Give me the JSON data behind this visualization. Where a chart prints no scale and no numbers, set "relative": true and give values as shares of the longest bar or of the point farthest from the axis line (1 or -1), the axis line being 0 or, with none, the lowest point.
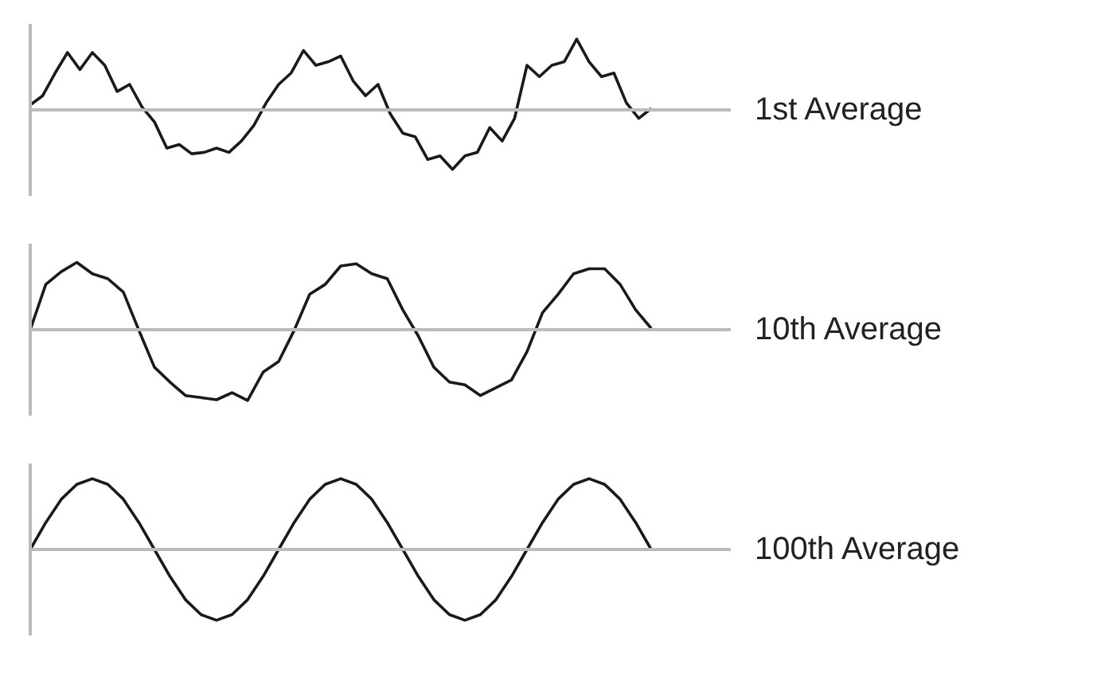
{
  "chart_data": [
    {
      "type": "line",
      "relative": true,
      "categories": [
        null,
        null,
        null,
        null,
        null,
        null,
        null,
        null,
        null,
        null,
        null,
        null,
        null,
        null,
        null,
        null,
        null,
        null,
        null,
        null,
        null,
        null,
        null,
        null,
        null,
        null,
        null,
        null,
        null,
        null,
        null,
        null,
        null,
        null,
        null,
        null,
        null,
        null,
        null,
        null,
        null,
        null,
        null,
        null,
        null,
        null,
        null,
        null,
        null,
        null,
        null
      ],
      "series": [
        {
          "name": "1st Average",
          "color": "#1a1a1a",
          "values": [
            0.07,
            0.2,
            0.52,
            0.81,
            0.57,
            0.81,
            0.63,
            0.26,
            0.36,
            0.04,
            -0.17,
            -0.54,
            -0.49,
            -0.62,
            -0.6,
            -0.54,
            -0.6,
            -0.44,
            -0.22,
            0.1,
            0.36,
            0.52,
            0.84,
            0.63,
            0.68,
            0.76,
            0.41,
            0.2,
            0.36,
            -0.06,
            -0.33,
            -0.38,
            -0.7,
            -0.65,
            -0.84,
            -0.65,
            -0.6,
            -0.25,
            -0.44,
            -0.12,
            0.63,
            0.47,
            0.63,
            0.68,
            1,
            0.68,
            0.47,
            0.52,
            0.1,
            -0.12,
            0.02
          ]
        }
      ]
    },
    {
      "type": "line",
      "relative": true,
      "categories": [
        null,
        null,
        null,
        null,
        null,
        null,
        null,
        null,
        null,
        null,
        null,
        null,
        null,
        null,
        null,
        null,
        null,
        null,
        null,
        null,
        null,
        null,
        null,
        null,
        null,
        null,
        null,
        null,
        null,
        null,
        null,
        null,
        null,
        null,
        null,
        null,
        null,
        null,
        null,
        null,
        null
      ],
      "series": [
        {
          "name": "10th Average",
          "color": "#1a1a1a",
          "values": [
            0,
            0.64,
            0.82,
            0.95,
            0.79,
            0.72,
            0.53,
            -0.01,
            -0.53,
            -0.74,
            -0.93,
            -0.96,
            -0.99,
            -0.89,
            -1,
            -0.6,
            -0.45,
            -0.01,
            0.5,
            0.64,
            0.9,
            0.93,
            0.79,
            0.72,
            0.28,
            -0.09,
            -0.53,
            -0.74,
            -0.78,
            -0.93,
            -0.82,
            -0.71,
            -0.31,
            0.24,
            0.5,
            0.79,
            0.86,
            0.86,
            0.64,
            0.28,
            0.02
          ]
        }
      ]
    },
    {
      "type": "line",
      "relative": true,
      "categories": [
        null,
        null,
        null,
        null,
        null,
        null,
        null,
        null,
        null,
        null,
        null,
        null,
        null,
        null,
        null,
        null,
        null,
        null,
        null,
        null,
        null,
        null,
        null,
        null,
        null,
        null,
        null,
        null,
        null,
        null,
        null,
        null,
        null,
        null,
        null,
        null,
        null,
        null,
        null,
        null,
        null
      ],
      "series": [
        {
          "name": "100th Average",
          "color": "#1a1a1a",
          "values": [
            0,
            0.38,
            0.71,
            0.92,
            1,
            0.92,
            0.71,
            0.38,
            0,
            -0.38,
            -0.71,
            -0.92,
            -1,
            -0.92,
            -0.71,
            -0.38,
            0,
            0.38,
            0.71,
            0.92,
            1,
            0.92,
            0.71,
            0.38,
            0,
            -0.38,
            -0.71,
            -0.92,
            -1,
            -0.92,
            -0.71,
            -0.38,
            0,
            0.38,
            0.71,
            0.92,
            1,
            0.92,
            0.71,
            0.38,
            0
          ]
        }
      ]
    }
  ]
}
